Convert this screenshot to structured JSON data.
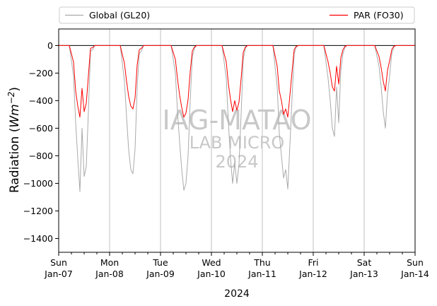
{
  "chart_data": {
    "type": "line",
    "xlabel": "2024",
    "ylabel": "Radiation (Wm−2)",
    "ylabel_prefix": "Radiation (",
    "ylabel_unit_main": "Wm",
    "ylabel_unit_sup": "−2",
    "ylabel_suffix": ")",
    "ylim": [
      -1500,
      120
    ],
    "xlim": [
      "2024-01-07",
      "2024-01-14"
    ],
    "grid": "x-major-only",
    "zero_line": true,
    "legend_placement": "top (above plot, two columns)",
    "y_ticks": [
      "0",
      "−200",
      "−400",
      "−600",
      "−800",
      "−1000",
      "−1200",
      "−1400"
    ],
    "y_tick_values": [
      0,
      -200,
      -400,
      -600,
      -800,
      -1000,
      -1200,
      -1400
    ],
    "x_ticks": [
      {
        "day": "Sun",
        "date": "Jan-07"
      },
      {
        "day": "Mon",
        "date": "Jan-08"
      },
      {
        "day": "Tue",
        "date": "Jan-09"
      },
      {
        "day": "Wed",
        "date": "Jan-10"
      },
      {
        "day": "Thu",
        "date": "Jan-11"
      },
      {
        "day": "Fri",
        "date": "Jan-12"
      },
      {
        "day": "Sat",
        "date": "Jan-13"
      },
      {
        "day": "Sun",
        "date": "Jan-14"
      }
    ],
    "watermark": {
      "line1": "IAG-MATAO",
      "line2": "LAB MICRO",
      "line3": "2024"
    },
    "series": [
      {
        "name": "Global (GL20)",
        "color": "#aaaaaa",
        "x_hours": [
          0,
          5,
          7,
          8,
          9,
          10,
          11,
          12,
          13,
          14,
          15,
          16,
          17,
          18,
          20,
          24,
          29,
          31,
          32,
          33,
          34,
          35,
          36,
          37,
          38,
          39,
          40,
          41,
          42,
          44,
          48,
          53,
          55,
          56,
          57,
          58,
          59,
          60,
          61,
          62,
          63,
          64,
          65,
          66,
          68,
          72,
          77,
          79,
          80,
          81,
          82,
          83,
          84,
          85,
          86,
          87,
          88,
          89,
          90,
          92,
          96,
          101,
          103,
          104,
          105,
          106,
          107,
          108,
          109,
          110,
          111,
          112,
          113,
          114,
          116,
          120,
          125,
          127,
          128,
          129,
          130,
          131,
          132,
          133,
          134,
          135,
          136,
          137,
          138,
          140,
          144,
          149,
          151,
          152,
          153,
          154,
          155,
          156,
          157,
          158,
          159,
          160,
          161,
          162,
          164,
          168
        ],
        "values": [
          0,
          0,
          -220,
          -560,
          -820,
          -1060,
          -600,
          -950,
          -880,
          -480,
          -40,
          -30,
          0,
          0,
          0,
          0,
          0,
          -260,
          -520,
          -760,
          -900,
          -930,
          -750,
          -300,
          -60,
          -40,
          0,
          0,
          0,
          0,
          0,
          0,
          -200,
          -480,
          -700,
          -900,
          -1050,
          -1000,
          -800,
          -400,
          -80,
          -20,
          0,
          0,
          0,
          0,
          0,
          -240,
          -560,
          -820,
          -1000,
          -850,
          -1000,
          -860,
          -500,
          -100,
          -20,
          0,
          0,
          0,
          0,
          0,
          -300,
          -640,
          -800,
          -960,
          -900,
          -1040,
          -720,
          -380,
          -60,
          -10,
          0,
          0,
          0,
          0,
          0,
          -240,
          -400,
          -600,
          -660,
          -300,
          -560,
          -180,
          -60,
          -10,
          0,
          0,
          0,
          0,
          0,
          0,
          -150,
          -300,
          -480,
          -600,
          -350,
          -220,
          -60,
          -10,
          0,
          0,
          0,
          0,
          0,
          0
        ]
      },
      {
        "name": "PAR (FO30)",
        "color": "#ff0000",
        "x_hours": [
          0,
          5,
          7,
          8,
          9,
          10,
          11,
          12,
          13,
          14,
          15,
          16,
          17,
          18,
          20,
          24,
          29,
          31,
          32,
          33,
          34,
          35,
          36,
          37,
          38,
          39,
          40,
          41,
          42,
          44,
          48,
          53,
          55,
          56,
          57,
          58,
          59,
          60,
          61,
          62,
          63,
          64,
          65,
          66,
          68,
          72,
          77,
          79,
          80,
          81,
          82,
          83,
          84,
          85,
          86,
          87,
          88,
          89,
          90,
          92,
          96,
          101,
          103,
          104,
          105,
          106,
          107,
          108,
          109,
          110,
          111,
          112,
          113,
          114,
          116,
          120,
          125,
          127,
          128,
          129,
          130,
          131,
          132,
          133,
          134,
          135,
          136,
          137,
          138,
          140,
          144,
          149,
          151,
          152,
          153,
          154,
          155,
          156,
          157,
          158,
          159,
          160,
          161,
          162,
          164,
          168
        ],
        "values": [
          0,
          0,
          -120,
          -330,
          -440,
          -520,
          -310,
          -480,
          -420,
          -220,
          -20,
          -15,
          0,
          0,
          0,
          0,
          0,
          -130,
          -260,
          -370,
          -440,
          -460,
          -380,
          -140,
          -30,
          -20,
          0,
          0,
          0,
          0,
          0,
          0,
          -100,
          -240,
          -360,
          -450,
          -520,
          -490,
          -390,
          -190,
          -40,
          -10,
          0,
          0,
          0,
          0,
          0,
          -120,
          -280,
          -390,
          -480,
          -400,
          -470,
          -410,
          -240,
          -50,
          -10,
          0,
          0,
          0,
          0,
          0,
          -150,
          -330,
          -400,
          -500,
          -460,
          -520,
          -360,
          -190,
          -30,
          -5,
          0,
          0,
          0,
          0,
          0,
          -120,
          -200,
          -300,
          -330,
          -150,
          -280,
          -90,
          -30,
          -5,
          0,
          0,
          0,
          0,
          0,
          0,
          -80,
          -160,
          -260,
          -330,
          -180,
          -110,
          -30,
          -5,
          0,
          0,
          0,
          0,
          0,
          0
        ]
      }
    ]
  }
}
